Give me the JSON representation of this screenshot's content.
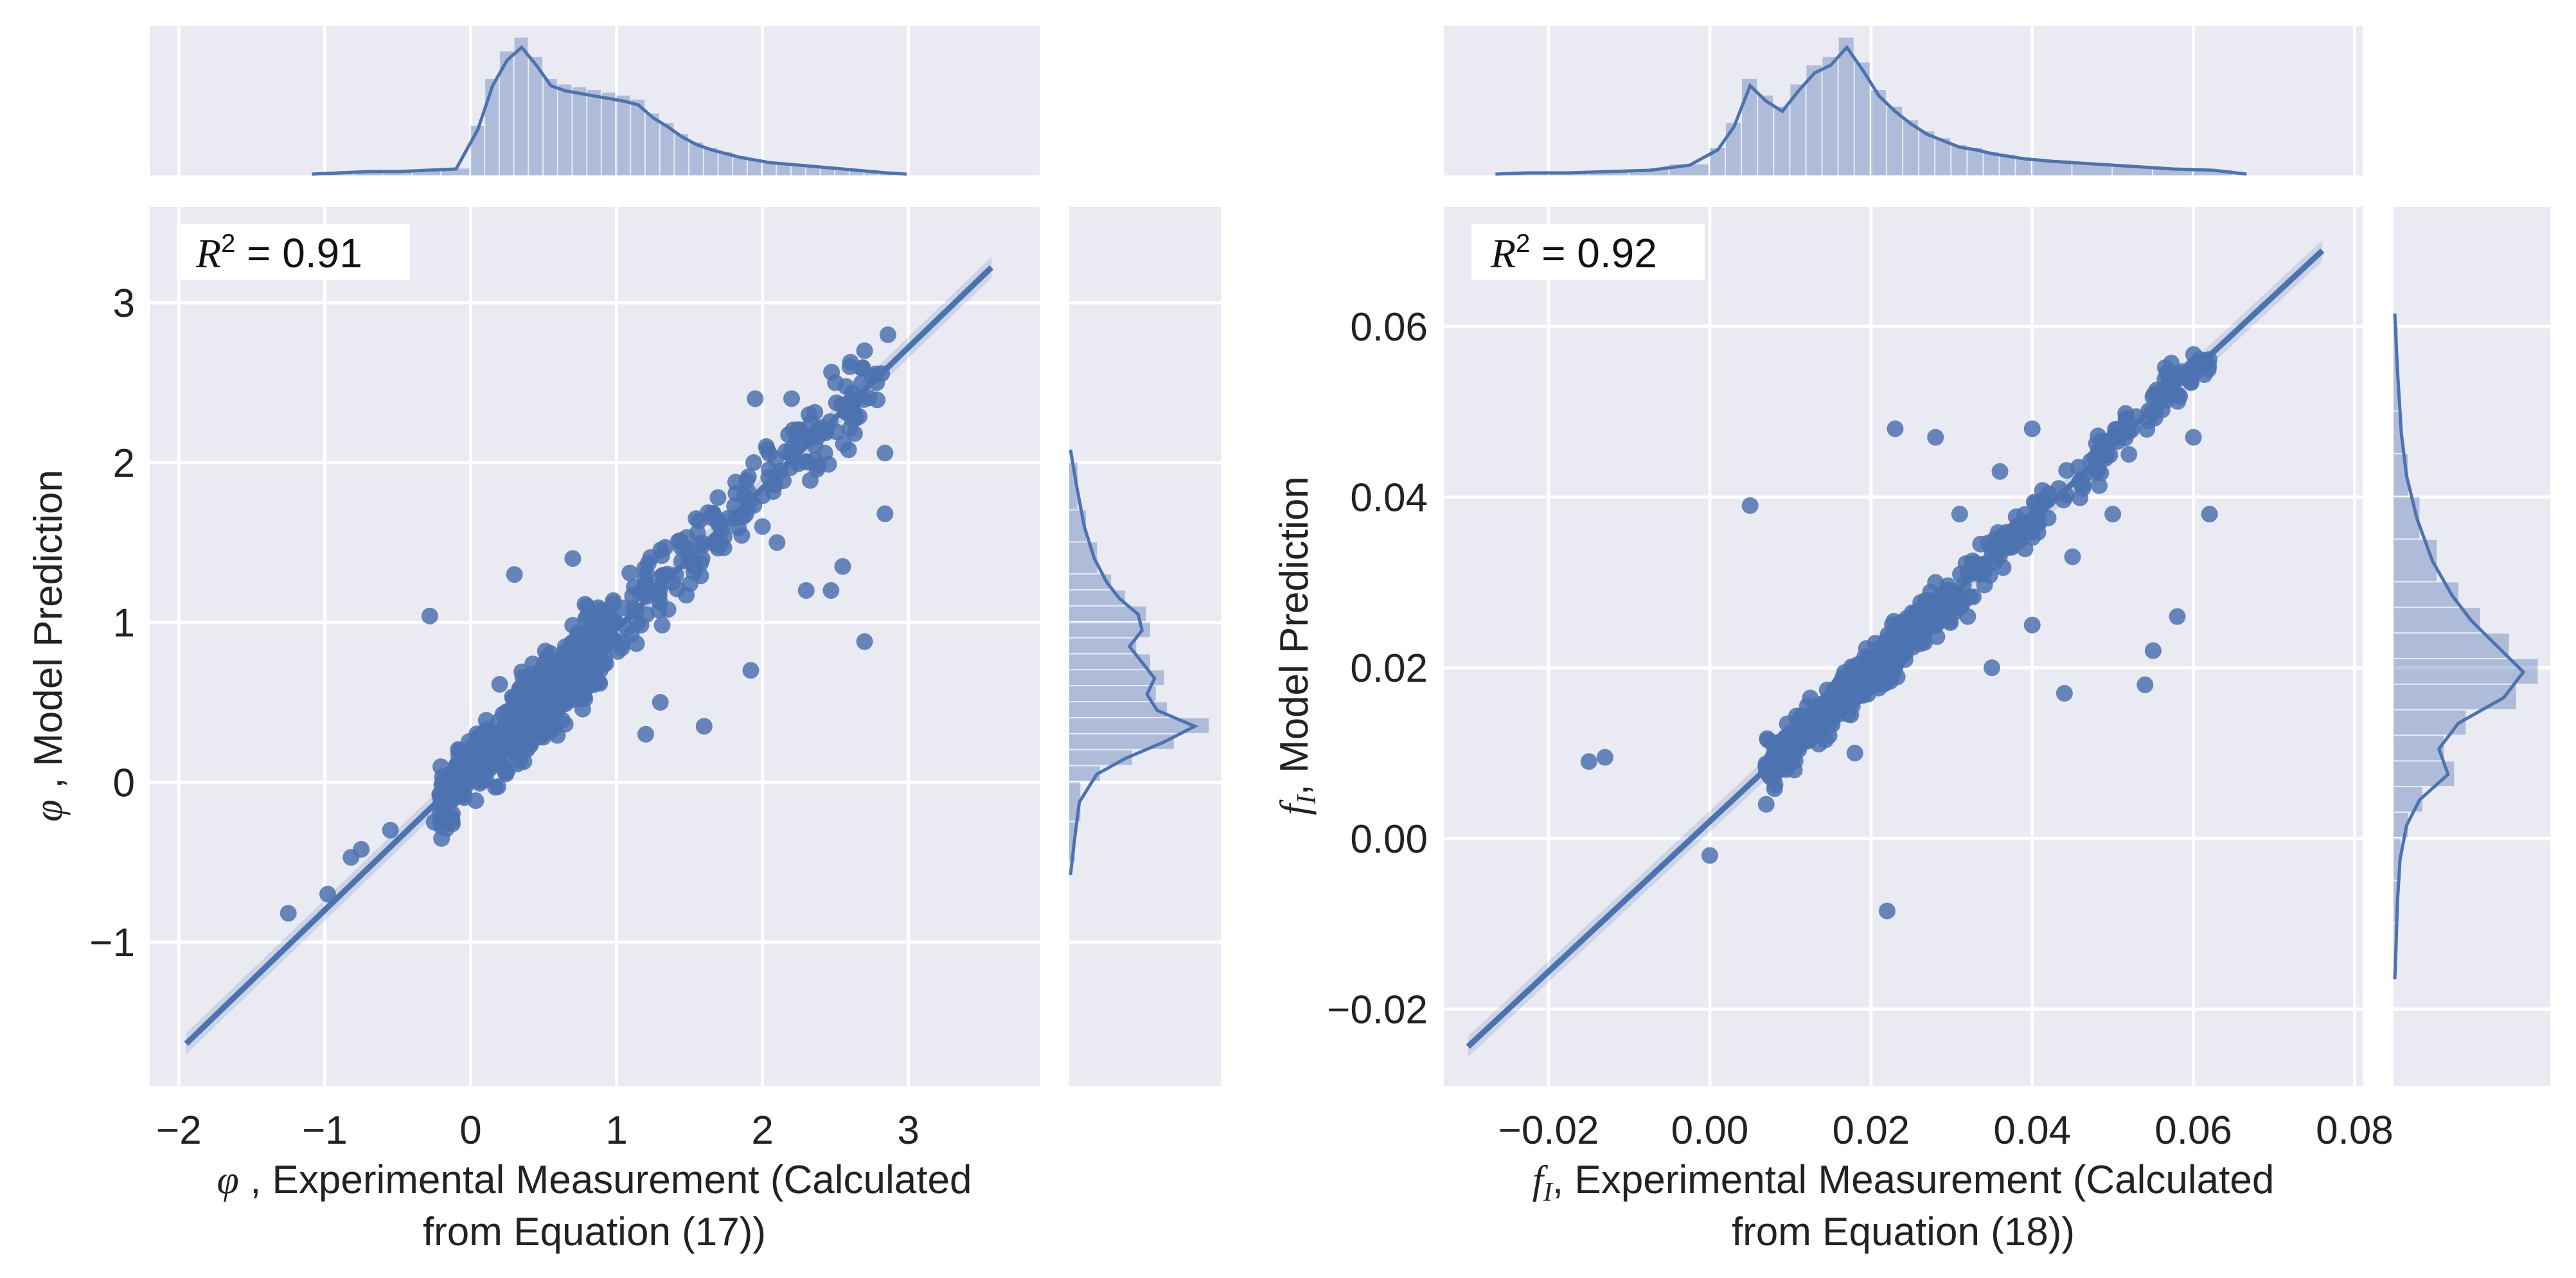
{
  "figure": {
    "left": {
      "r2_symbol": "R",
      "r2_sup": "2",
      "r2_text": " = 0.91",
      "x_symbol": "φ",
      "x_label_line1": " , Experimental Measurement (Calculated",
      "x_label_line2": "from Equation (17))",
      "y_symbol": "φ",
      "y_label": " , Model Prediction"
    },
    "right": {
      "r2_symbol": "R",
      "r2_sup": "2",
      "r2_text": " = 0.92",
      "x_symbol": "f",
      "x_symbol_sub": "I",
      "x_label_line1": ", Experimental Measurement (Calculated",
      "x_label_line2": "from Equation (18))",
      "y_symbol": "f",
      "y_symbol_sub": "I",
      "y_label": ", Model Prediction"
    }
  },
  "chart_data": [
    {
      "type": "scatter",
      "name": "phi-joint-plot",
      "title": "",
      "xlabel": "φ , Experimental Measurement (Calculated from Equation (17))",
      "ylabel": "φ , Model Prediction",
      "annotation": "R² = 0.91",
      "r_squared": 0.91,
      "xlim": [
        -2.2,
        3.9
      ],
      "ylim": [
        -1.9,
        3.6
      ],
      "xticks": [
        -2,
        -1,
        0,
        1,
        2,
        3
      ],
      "xtick_labels": [
        "−2",
        "−1",
        "0",
        "1",
        "2",
        "3"
      ],
      "yticks": [
        -1,
        0,
        1,
        2,
        3
      ],
      "ytick_labels": [
        "−1",
        "0",
        "1",
        "2",
        "3"
      ],
      "grid": true,
      "regression": {
        "slope": 0.88,
        "intercept": 0.08,
        "x_range": [
          -1.95,
          3.57
        ]
      },
      "outliers": [
        [
          -1.25,
          -0.82
        ],
        [
          -0.98,
          -0.7
        ],
        [
          -0.82,
          -0.47
        ],
        [
          -0.75,
          -0.42
        ],
        [
          -0.55,
          -0.3
        ],
        [
          -0.28,
          1.04
        ],
        [
          0.3,
          1.3
        ],
        [
          0.38,
          0.32
        ],
        [
          0.55,
          0.32
        ],
        [
          0.7,
          1.4
        ],
        [
          0.8,
          1.1
        ],
        [
          1.3,
          0.5
        ],
        [
          1.2,
          0.3
        ],
        [
          1.6,
          0.35
        ],
        [
          1.92,
          0.7
        ],
        [
          2.1,
          1.5
        ],
        [
          2.3,
          1.2
        ],
        [
          2.47,
          1.2
        ],
        [
          2.7,
          0.88
        ],
        [
          2.55,
          1.35
        ],
        [
          2.84,
          1.68
        ],
        [
          2.84,
          2.06
        ],
        [
          2.59,
          2.08
        ],
        [
          1.94,
          2.0
        ],
        [
          1.9,
          1.82
        ],
        [
          1.95,
          2.4
        ],
        [
          2.2,
          2.4
        ],
        [
          2.0,
          1.6
        ],
        [
          1.5,
          1.4
        ],
        [
          2.86,
          2.8
        ],
        [
          2.7,
          2.7
        ],
        [
          2.5,
          2.5
        ],
        [
          2.6,
          2.6
        ],
        [
          -0.05,
          0.15
        ],
        [
          -0.25,
          -0.25
        ]
      ],
      "cluster": {
        "count": 700,
        "center_x": 0.35,
        "skew_tail_to": 2.85,
        "noise": 0.18
      },
      "marginal_x": {
        "bins": [
          -1.0,
          -0.8,
          -0.6,
          -0.4,
          -0.2,
          0.0,
          0.1,
          0.2,
          0.3,
          0.4,
          0.5,
          0.6,
          0.7,
          0.8,
          0.9,
          1.0,
          1.1,
          1.2,
          1.3,
          1.4,
          1.5,
          1.6,
          1.7,
          1.8,
          1.9,
          2.0,
          2.1,
          2.2,
          2.3,
          2.4,
          2.5,
          2.6,
          2.7,
          2.8,
          2.9
        ],
        "heights": [
          0.02,
          0.03,
          0.03,
          0.04,
          0.05,
          0.36,
          0.7,
          0.9,
          1.0,
          0.86,
          0.7,
          0.66,
          0.64,
          0.62,
          0.6,
          0.58,
          0.55,
          0.45,
          0.38,
          0.3,
          0.24,
          0.2,
          0.17,
          0.14,
          0.12,
          0.1,
          0.09,
          0.08,
          0.07,
          0.06,
          0.05,
          0.04,
          0.03,
          0.02
        ]
      },
      "marginal_y": {
        "bins": [
          -0.5,
          -0.25,
          0.0,
          0.1,
          0.2,
          0.3,
          0.4,
          0.5,
          0.6,
          0.7,
          0.8,
          0.9,
          1.0,
          1.1,
          1.2,
          1.3,
          1.5,
          1.7,
          2.0
        ],
        "heights": [
          0.04,
          0.08,
          0.22,
          0.45,
          0.75,
          1.0,
          0.7,
          0.62,
          0.68,
          0.58,
          0.48,
          0.58,
          0.55,
          0.4,
          0.3,
          0.2,
          0.12,
          0.06
        ]
      }
    },
    {
      "type": "scatter",
      "name": "fI-joint-plot",
      "title": "",
      "xlabel": "f_I , Experimental Measurement (Calculated from Equation (18))",
      "ylabel": "f_I , Model Prediction",
      "annotation": "R² = 0.92",
      "r_squared": 0.92,
      "xlim": [
        -0.033,
        0.081
      ],
      "ylim": [
        -0.029,
        0.074
      ],
      "xticks": [
        -0.02,
        0.0,
        0.02,
        0.04,
        0.06,
        0.08
      ],
      "xtick_labels": [
        "−0.02",
        "0.00",
        "0.02",
        "0.04",
        "0.06",
        "0.08"
      ],
      "yticks": [
        -0.02,
        0.0,
        0.02,
        0.04,
        0.06
      ],
      "ytick_labels": [
        "−0.02",
        "0.00",
        "0.02",
        "0.04",
        "0.06"
      ],
      "grid": true,
      "regression": {
        "slope": 0.88,
        "intercept": 0.002,
        "x_range": [
          -0.03,
          0.076
        ]
      },
      "outliers": [
        [
          -0.015,
          0.009
        ],
        [
          -0.013,
          0.0095
        ],
        [
          0.005,
          0.039
        ],
        [
          0.022,
          -0.0085
        ],
        [
          0.023,
          0.048
        ],
        [
          0.028,
          0.03
        ],
        [
          0.032,
          0.026
        ],
        [
          0.035,
          0.02
        ],
        [
          0.04,
          0.025
        ],
        [
          0.044,
          0.017
        ],
        [
          0.054,
          0.018
        ],
        [
          0.055,
          0.022
        ],
        [
          0.058,
          0.026
        ],
        [
          0.062,
          0.038
        ],
        [
          0.06,
          0.047
        ],
        [
          0.052,
          0.045
        ],
        [
          0.04,
          0.048
        ],
        [
          0.028,
          0.047
        ],
        [
          0.036,
          0.043
        ],
        [
          0.031,
          0.038
        ],
        [
          0.045,
          0.033
        ],
        [
          0.05,
          0.038
        ],
        [
          0.018,
          0.01
        ],
        [
          0.007,
          0.004
        ],
        [
          0.0,
          -0.002
        ]
      ],
      "cluster": {
        "count": 650,
        "center_x": 0.017,
        "skew_tail_to": 0.062,
        "noise": 0.0018
      },
      "marginal_x": {
        "bins": [
          -0.025,
          -0.02,
          -0.015,
          -0.01,
          -0.005,
          0.0,
          0.002,
          0.004,
          0.006,
          0.008,
          0.01,
          0.012,
          0.014,
          0.016,
          0.018,
          0.02,
          0.022,
          0.024,
          0.026,
          0.028,
          0.03,
          0.032,
          0.034,
          0.036,
          0.038,
          0.04,
          0.045,
          0.05,
          0.055,
          0.06,
          0.065
        ],
        "heights": [
          0.02,
          0.02,
          0.03,
          0.04,
          0.08,
          0.2,
          0.38,
          0.7,
          0.58,
          0.5,
          0.66,
          0.8,
          0.86,
          1.0,
          0.82,
          0.62,
          0.5,
          0.4,
          0.32,
          0.27,
          0.22,
          0.2,
          0.17,
          0.15,
          0.13,
          0.11,
          0.09,
          0.07,
          0.05,
          0.04
        ]
      },
      "marginal_y": {
        "bins": [
          -0.015,
          -0.01,
          -0.005,
          0.0,
          0.003,
          0.006,
          0.009,
          0.012,
          0.015,
          0.018,
          0.021,
          0.024,
          0.027,
          0.03,
          0.035,
          0.04,
          0.045,
          0.05,
          0.06
        ],
        "heights": [
          0.02,
          0.03,
          0.05,
          0.1,
          0.2,
          0.42,
          0.35,
          0.5,
          0.85,
          1.0,
          0.8,
          0.6,
          0.45,
          0.3,
          0.18,
          0.1,
          0.06,
          0.03
        ]
      }
    }
  ]
}
